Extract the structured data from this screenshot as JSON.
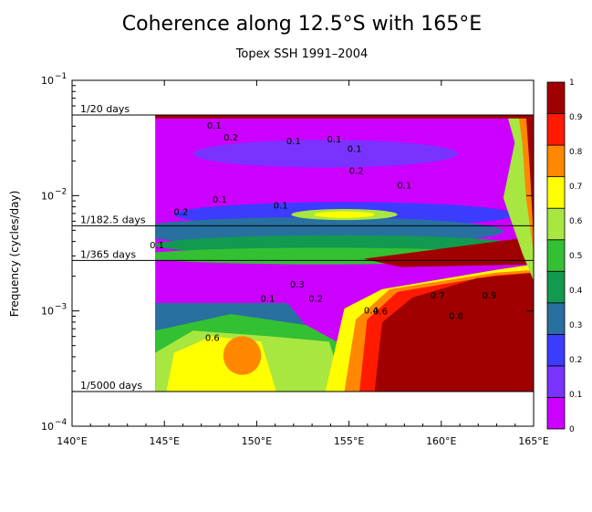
{
  "chart_data": {
    "type": "heatmap",
    "title": "Coherence along 12.5°S with 165°E",
    "subtitle": "Topex SSH 1991–2004",
    "ylabel": "Frequency (cycles/day)",
    "xlabel": "",
    "x_ticks": [
      "140°E",
      "145°E",
      "150°E",
      "155°E",
      "160°E",
      "165°E"
    ],
    "x_values": [
      140,
      145,
      150,
      155,
      160,
      165
    ],
    "xlim": [
      140,
      165
    ],
    "y_scale": "log",
    "ylim": [
      0.0001,
      0.1
    ],
    "y_ticks": [
      {
        "value": 0.1,
        "base": "10",
        "exp": "−1"
      },
      {
        "value": 0.01,
        "base": "10",
        "exp": "−2"
      },
      {
        "value": 0.001,
        "base": "10",
        "exp": "−3"
      },
      {
        "value": 0.0001,
        "base": "10",
        "exp": "−4"
      }
    ],
    "reference_periods": [
      {
        "label": "1/20 days",
        "frequency": 0.05
      },
      {
        "label": "1/182.5 days",
        "frequency": 0.005479
      },
      {
        "label": "1/365 days",
        "frequency": 0.00274
      },
      {
        "label": "1/5000 days",
        "frequency": 0.0002
      }
    ],
    "data_extent": {
      "x": [
        144.5,
        165
      ],
      "y": [
        0.0002,
        0.05
      ]
    },
    "colorbar": {
      "levels": [
        0,
        0.1,
        0.2,
        0.3,
        0.4,
        0.5,
        0.6,
        0.7,
        0.8,
        0.9,
        1
      ],
      "labels": [
        "0",
        "0.1",
        "0.2",
        "0.3",
        "0.4",
        "0.5",
        "0.6",
        "0.7",
        "0.8",
        "0.9",
        "1"
      ],
      "colors": [
        "#cc00ff",
        "#7a33ff",
        "#3c3cff",
        "#2870a0",
        "#129a50",
        "#33c033",
        "#a8e640",
        "#ffff00",
        "#ff8800",
        "#ff1a00",
        "#a00000"
      ]
    },
    "grid": false,
    "legend": "colorbar-right",
    "contour_labels": [
      {
        "text": "0.1",
        "lon": 147.7,
        "freq": 0.038
      },
      {
        "text": "0.2",
        "lon": 148.6,
        "freq": 0.03
      },
      {
        "text": "0.1",
        "lon": 152.0,
        "freq": 0.028
      },
      {
        "text": "0.1",
        "lon": 154.2,
        "freq": 0.029
      },
      {
        "text": "0.1",
        "lon": 155.3,
        "freq": 0.024
      },
      {
        "text": "0.2",
        "lon": 155.4,
        "freq": 0.0155
      },
      {
        "text": "0.1",
        "lon": 158.0,
        "freq": 0.0115
      },
      {
        "text": "0.2",
        "lon": 145.9,
        "freq": 0.0068
      },
      {
        "text": "0.1",
        "lon": 148.0,
        "freq": 0.0087
      },
      {
        "text": "0.1",
        "lon": 151.3,
        "freq": 0.0077
      },
      {
        "text": "0.1",
        "lon": 144.6,
        "freq": 0.0035
      },
      {
        "text": "0.3",
        "lon": 152.2,
        "freq": 0.0016
      },
      {
        "text": "0.1",
        "lon": 150.6,
        "freq": 0.0012
      },
      {
        "text": "0.2",
        "lon": 153.2,
        "freq": 0.0012
      },
      {
        "text": "0.4",
        "lon": 156.2,
        "freq": 0.00095
      },
      {
        "text": "0.6",
        "lon": 156.7,
        "freq": 0.00093
      },
      {
        "text": "0.7",
        "lon": 159.8,
        "freq": 0.00128
      },
      {
        "text": "0.8",
        "lon": 160.8,
        "freq": 0.00085
      },
      {
        "text": "0.9",
        "lon": 162.6,
        "freq": 0.00128
      },
      {
        "text": "0.6",
        "lon": 147.6,
        "freq": 0.00055
      }
    ]
  }
}
